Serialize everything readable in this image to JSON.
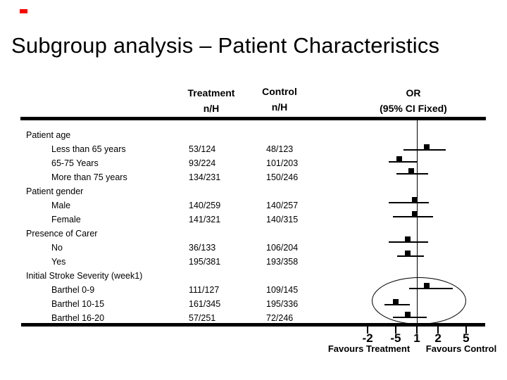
{
  "slide": {
    "title": "Subgroup analysis – Patient Characteristics",
    "accent_color": "#FF0000",
    "text_color": "#000000",
    "background_color": "#FFFFFF"
  },
  "columns": {
    "treatment": {
      "line1": "Treatment",
      "line2": "n/H"
    },
    "control": {
      "line1": "Control",
      "line2": "n/H"
    },
    "or": {
      "line1": "OR",
      "line2": "(95% CI Fixed)"
    }
  },
  "chart_data": {
    "type": "scatter",
    "variant": "forest-plot",
    "title": "OR (95% CI Fixed)",
    "x_scale": "log",
    "reference_value": 1,
    "x_ticks": [
      {
        "label": "-2",
        "value": 0.2
      },
      {
        "label": "-5",
        "value": 0.5
      },
      {
        "label": "1",
        "value": 1
      },
      {
        "label": "2",
        "value": 2
      },
      {
        "label": "5",
        "value": 5
      }
    ],
    "axis_labels": {
      "left": "Favours Treatment",
      "right": "Favours Control"
    },
    "marker_shape": "filled-square",
    "rows": [
      {
        "label": "Patient age",
        "indent": 0
      },
      {
        "label": "Less than 65 years",
        "indent": 1,
        "treatment": "53/124",
        "control": "48/123",
        "or": 1.38,
        "ci_low": 0.65,
        "ci_high": 2.57
      },
      {
        "label": "65-75 Years",
        "indent": 1,
        "treatment": "93/224",
        "control": "101/203",
        "or": 0.56,
        "ci_low": 0.4,
        "ci_high": 1.0
      },
      {
        "label": "More than 75 years",
        "indent": 1,
        "treatment": "134/231",
        "control": "150/246",
        "or": 0.83,
        "ci_low": 0.51,
        "ci_high": 1.45
      },
      {
        "label": "Patient gender",
        "indent": 0
      },
      {
        "label": "Male",
        "indent": 1,
        "treatment": "140/259",
        "control": "140/257",
        "or": 0.93,
        "ci_low": 0.4,
        "ci_high": 1.48
      },
      {
        "label": "Female",
        "indent": 1,
        "treatment": "141/321",
        "control": "140/315",
        "or": 0.93,
        "ci_low": 0.46,
        "ci_high": 1.7
      },
      {
        "label": "Presence of Carer",
        "indent": 0
      },
      {
        "label": "No",
        "indent": 1,
        "treatment": "36/133",
        "control": "106/204",
        "or": 0.74,
        "ci_low": 0.4,
        "ci_high": 1.45
      },
      {
        "label": "Yes",
        "indent": 1,
        "treatment": "195/381",
        "control": "193/358",
        "or": 0.74,
        "ci_low": 0.52,
        "ci_high": 1.26
      },
      {
        "label": "Initial Stroke Severity (week1)",
        "indent": 0
      },
      {
        "label": "Barthel 0-9",
        "indent": 1,
        "treatment": "111/127",
        "control": "109/145",
        "or": 1.38,
        "ci_low": 0.78,
        "ci_high": 3.24
      },
      {
        "label": "Barthel 10-15",
        "indent": 1,
        "treatment": "161/345",
        "control": "195/336",
        "or": 0.5,
        "ci_low": 0.35,
        "ci_high": 0.79
      },
      {
        "label": "Barthel 16-20",
        "indent": 1,
        "treatment": "57/251",
        "control": "72/246",
        "or": 0.74,
        "ci_low": 0.46,
        "ci_high": 1.38
      }
    ],
    "annotation": {
      "shape": "ellipse-highlight",
      "around_rows": [
        "Barthel 0-9",
        "Barthel 10-15",
        "Barthel 16-20"
      ]
    }
  }
}
